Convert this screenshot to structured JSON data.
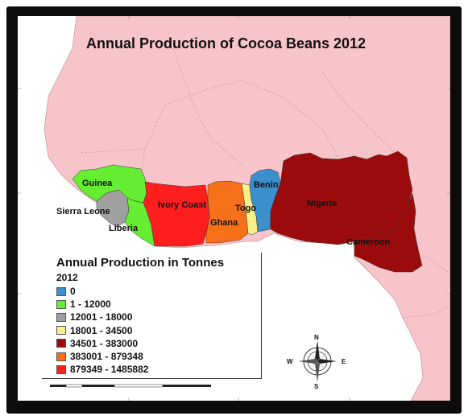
{
  "map": {
    "title": "Annual Production of Cocoa Beans 2012",
    "colors": {
      "ocean": "#ffffff",
      "land": "#f7c4ca",
      "border": "#b88a8f",
      "frame": "#0c0c0c"
    },
    "countries": [
      {
        "name": "Guinea",
        "label": "Guinea",
        "class_index": 1,
        "color": "#66ee33"
      },
      {
        "name": "Sierra Leone",
        "label": "Sierra Leone",
        "class_index": 2,
        "color": "#a0a0a0"
      },
      {
        "name": "Liberia",
        "label": "Liberia",
        "class_index": 1,
        "color": "#66ee33"
      },
      {
        "name": "Ivory Coast",
        "label": "Ivory Coast",
        "class_index": 6,
        "color": "#ff1e1e"
      },
      {
        "name": "Ghana",
        "label": "Ghana",
        "class_index": 5,
        "color": "#f7701a"
      },
      {
        "name": "Togo",
        "label": "Togo",
        "class_index": 3,
        "color": "#f7f089"
      },
      {
        "name": "Benin",
        "label": "Benin",
        "class_index": 0,
        "color": "#3a8fcc"
      },
      {
        "name": "Nigeria",
        "label": "Nigeria",
        "class_index": 4,
        "color": "#9c0b0b"
      },
      {
        "name": "Cameroon",
        "label": "Cameroon",
        "class_index": 4,
        "color": "#9c0b0b"
      }
    ]
  },
  "legend": {
    "title": "Annual Production in Tonnes",
    "year": "2012",
    "items": [
      {
        "label": "0",
        "color": "#3a8fcc"
      },
      {
        "label": "1 - 12000",
        "color": "#66ee33"
      },
      {
        "label": "12001 - 18000",
        "color": "#a0a0a0"
      },
      {
        "label": "18001 - 34500",
        "color": "#f7f089"
      },
      {
        "label": "34501 - 383000",
        "color": "#9c0b0b"
      },
      {
        "label": "383001 - 879348",
        "color": "#f7701a"
      },
      {
        "label": "879349 - 1485882",
        "color": "#ff1e1e"
      }
    ]
  },
  "compass": {
    "n": "N",
    "s": "S",
    "e": "E",
    "w": "W"
  }
}
